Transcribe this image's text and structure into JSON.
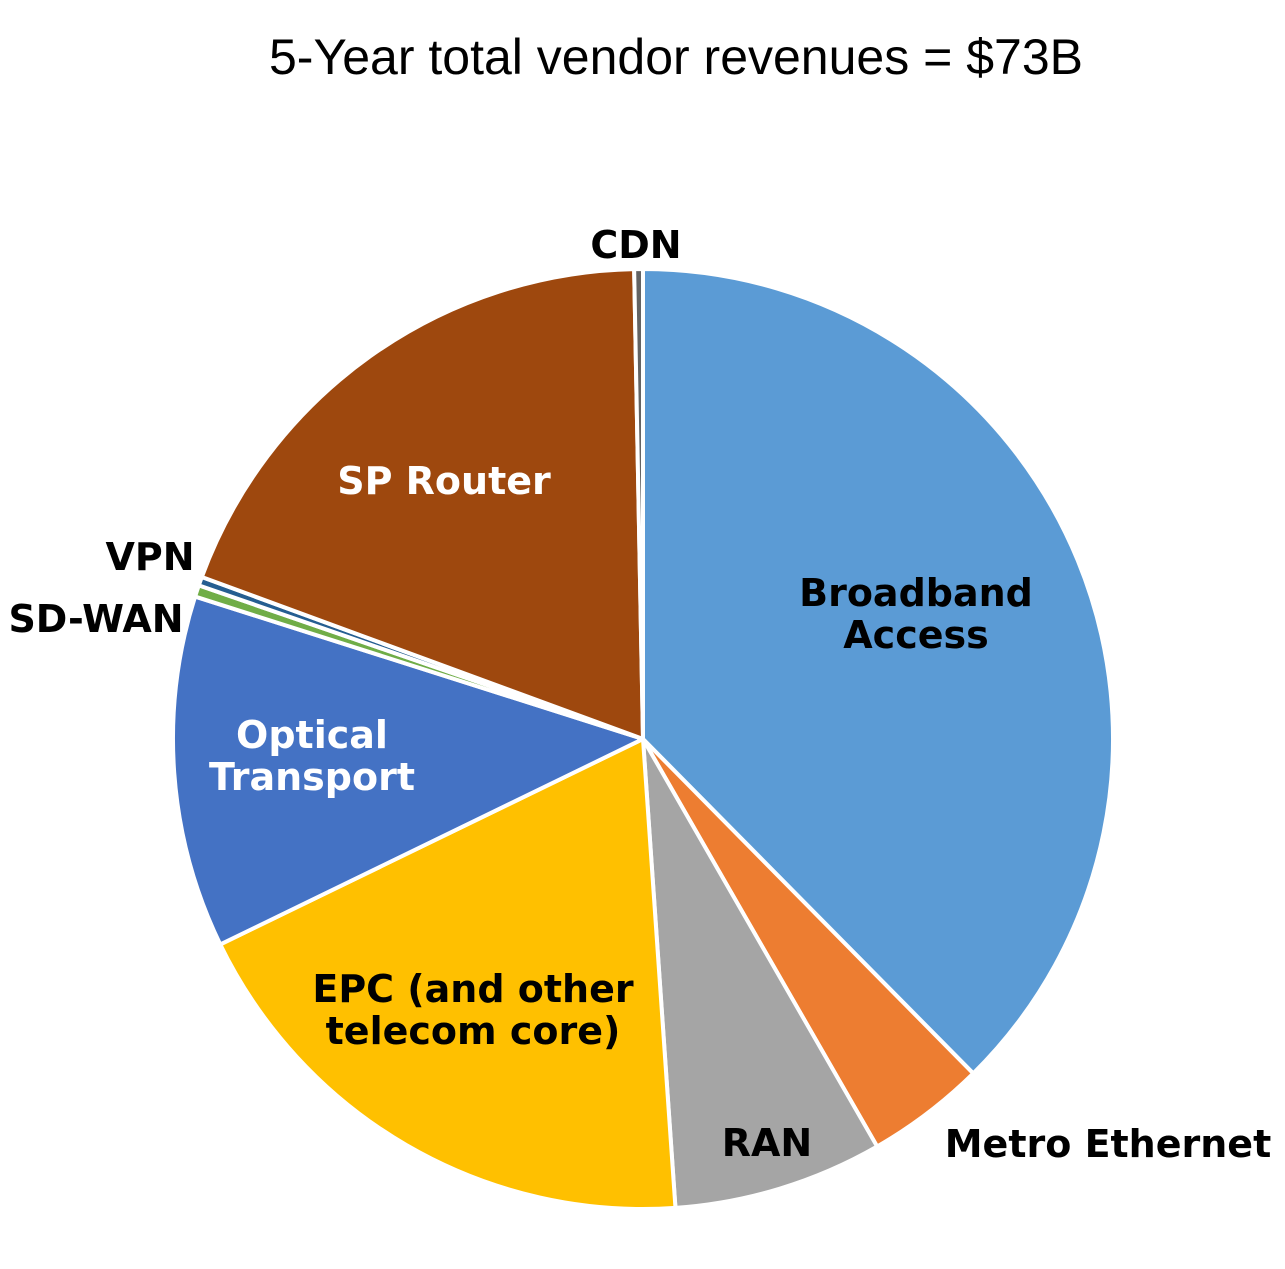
{
  "chart_data": {
    "type": "pie",
    "title": "5-Year total vendor revenues = $73B",
    "unit": "percent of total",
    "start_angle_deg": 0,
    "direction": "clockwise",
    "slices": [
      {
        "label": "Broadband Access",
        "lines": [
          "Broadband",
          "Access"
        ],
        "value": 37.6,
        "color": "#5B9BD5",
        "label_color": "#000000"
      },
      {
        "label": "Metro Ethernet",
        "lines": [
          "Metro Ethernet"
        ],
        "value": 4.1,
        "color": "#ED7D31",
        "label_color": "#000000"
      },
      {
        "label": "RAN",
        "lines": [
          "RAN"
        ],
        "value": 7.2,
        "color": "#A5A5A5",
        "label_color": "#000000"
      },
      {
        "label": "EPC (and other telecom core)",
        "lines": [
          "EPC (and other",
          "telecom core)"
        ],
        "value": 18.9,
        "color": "#FFC000",
        "label_color": "#000000"
      },
      {
        "label": "Optical Transport",
        "lines": [
          "Optical",
          "Transport"
        ],
        "value": 12.1,
        "color": "#4472C4",
        "label_color": "#FFFFFF"
      },
      {
        "label": "SD-WAN",
        "lines": [
          "SD-WAN"
        ],
        "value": 0.4,
        "color": "#70AD47",
        "label_color": "#000000"
      },
      {
        "label": "VPN",
        "lines": [
          "VPN"
        ],
        "value": 0.3,
        "color": "#255E91",
        "label_color": "#000000"
      },
      {
        "label": "SP Router",
        "lines": [
          "SP Router"
        ],
        "value": 19.1,
        "color": "#9E480E",
        "label_color": "#FFFFFF"
      },
      {
        "label": "CDN",
        "lines": [
          "CDN"
        ],
        "value": 0.3,
        "color": "#636363",
        "label_color": "#000000"
      }
    ]
  }
}
